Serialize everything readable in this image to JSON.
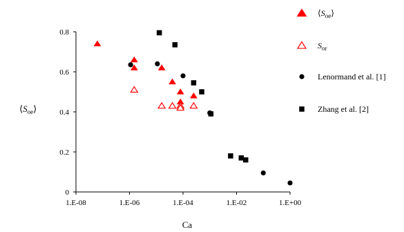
{
  "chart_data": {
    "type": "scatter",
    "xlabel": "Ca",
    "ylabel": "⟨Sₒₑ⟩",
    "ylabel_main": "S",
    "ylabel_sub": "oe",
    "x_scale": "log",
    "xlim": [
      1e-08,
      1
    ],
    "ylim": [
      0,
      0.8
    ],
    "x_ticks": [
      "1.E-08",
      "1.E-06",
      "1.E-04",
      "1.E-02",
      "1.E+00"
    ],
    "y_ticks": [
      "0",
      "0.2",
      "0.4",
      "0.6",
      "0.8"
    ],
    "grid": false,
    "legend_placement": "right",
    "series": [
      {
        "name": "⟨Soe⟩",
        "name_main": "S",
        "name_sub": "oe",
        "name_angled": true,
        "marker": "triangle-filled",
        "color": "#ff0000",
        "points": [
          {
            "x": 6.3e-08,
            "y": 0.74
          },
          {
            "x": 1.5e-06,
            "y": 0.66
          },
          {
            "x": 1.5e-06,
            "y": 0.62
          },
          {
            "x": 1.6e-05,
            "y": 0.62
          },
          {
            "x": 4e-05,
            "y": 0.55
          },
          {
            "x": 8e-05,
            "y": 0.5
          },
          {
            "x": 8e-05,
            "y": 0.45
          },
          {
            "x": 0.00025,
            "y": 0.48
          }
        ]
      },
      {
        "name": "Sor",
        "name_main": "S",
        "name_sub": "or",
        "name_angled": false,
        "marker": "triangle-open",
        "color": "#ff0000",
        "points": [
          {
            "x": 1.5e-06,
            "y": 0.51
          },
          {
            "x": 1.6e-05,
            "y": 0.43
          },
          {
            "x": 4e-05,
            "y": 0.43
          },
          {
            "x": 8e-05,
            "y": 0.43
          },
          {
            "x": 8e-05,
            "y": 0.42
          },
          {
            "x": 0.00025,
            "y": 0.43
          }
        ]
      },
      {
        "name": "Lenormand et al. [1]",
        "marker": "circle",
        "color": "#000000",
        "points": [
          {
            "x": 1.1e-06,
            "y": 0.635
          },
          {
            "x": 1.1e-05,
            "y": 0.64
          },
          {
            "x": 0.0001,
            "y": 0.58
          },
          {
            "x": 0.001,
            "y": 0.395
          },
          {
            "x": 0.1,
            "y": 0.095
          },
          {
            "x": 1.0,
            "y": 0.045
          }
        ]
      },
      {
        "name": "Zhang et al. [2]",
        "marker": "square",
        "color": "#000000",
        "points": [
          {
            "x": 1.3e-05,
            "y": 0.795
          },
          {
            "x": 5e-05,
            "y": 0.735
          },
          {
            "x": 0.00025,
            "y": 0.545
          },
          {
            "x": 0.0005,
            "y": 0.5
          },
          {
            "x": 0.0011,
            "y": 0.39
          },
          {
            "x": 0.006,
            "y": 0.18
          },
          {
            "x": 0.015,
            "y": 0.17
          },
          {
            "x": 0.022,
            "y": 0.16
          }
        ]
      }
    ]
  }
}
